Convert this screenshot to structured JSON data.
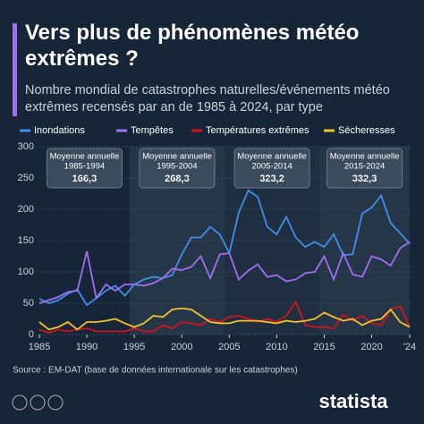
{
  "chart_data": {
    "type": "line",
    "title": "Vers plus de phénomènes météo extrêmes ?",
    "subtitle": "Nombre mondial de catastrophes naturelles/événements météo extrêmes recensés par an de 1985 à 2024, par type",
    "source": "Source : EM-DAT (base de données internationale sur les catastrophes)",
    "brand": "statista",
    "x": [
      1985,
      1986,
      1987,
      1988,
      1989,
      1990,
      1991,
      1992,
      1993,
      1994,
      1995,
      1996,
      1997,
      1998,
      1999,
      2000,
      2001,
      2002,
      2003,
      2004,
      2005,
      2006,
      2007,
      2008,
      2009,
      2010,
      2011,
      2012,
      2013,
      2014,
      2015,
      2016,
      2017,
      2018,
      2019,
      2020,
      2021,
      2022,
      2023,
      2024
    ],
    "series": [
      {
        "name": "Inondations",
        "color": "#3f8fe8",
        "values": [
          57,
          50,
          55,
          65,
          72,
          47,
          58,
          70,
          78,
          62,
          80,
          88,
          92,
          90,
          95,
          128,
          155,
          155,
          172,
          160,
          130,
          195,
          230,
          220,
          172,
          160,
          188,
          155,
          140,
          148,
          140,
          160,
          127,
          128,
          193,
          203,
          222,
          178,
          162,
          145
        ]
      },
      {
        "name": "Tempêtes",
        "color": "#9f6ff0",
        "values": [
          50,
          55,
          60,
          68,
          70,
          133,
          58,
          80,
          70,
          80,
          80,
          78,
          82,
          90,
          105,
          103,
          108,
          125,
          90,
          128,
          130,
          88,
          102,
          112,
          92,
          95,
          85,
          88,
          98,
          100,
          125,
          88,
          130,
          96,
          92,
          125,
          120,
          110,
          138,
          148
        ]
      },
      {
        "name": "Températures extrêmes",
        "color": "#d0141e",
        "values": [
          8,
          3,
          8,
          5,
          8,
          10,
          5,
          5,
          5,
          5,
          10,
          5,
          5,
          15,
          10,
          20,
          18,
          15,
          25,
          20,
          28,
          30,
          25,
          20,
          25,
          20,
          30,
          52,
          15,
          12,
          12,
          10,
          32,
          22,
          30,
          18,
          15,
          40,
          45,
          12
        ]
      },
      {
        "name": "Sécheresses",
        "color": "#f2c22e",
        "values": [
          20,
          8,
          12,
          20,
          8,
          20,
          20,
          22,
          25,
          18,
          12,
          18,
          30,
          28,
          40,
          42,
          40,
          30,
          20,
          18,
          18,
          22,
          22,
          22,
          20,
          18,
          22,
          20,
          22,
          25,
          35,
          28,
          22,
          25,
          15,
          22,
          25,
          40,
          20,
          12
        ]
      }
    ],
    "annotations": [
      {
        "label": "Moyenne annuelle",
        "period": "1985-1994",
        "value": 166.3,
        "value_label": "166,3"
      },
      {
        "label": "Moyenne annuelle",
        "period": "1995-2004",
        "value": 268.3,
        "value_label": "268,3"
      },
      {
        "label": "Moyenne annuelle",
        "period": "2005-2014",
        "value": 323.2,
        "value_label": "323,2"
      },
      {
        "label": "Moyenne annuelle",
        "period": "2015-2024",
        "value": 332.3,
        "value_label": "332,3"
      }
    ],
    "xlim": [
      1985,
      2024
    ],
    "xticks": [
      1985,
      1990,
      1995,
      2000,
      2005,
      2010,
      2015,
      2020,
      {
        "value": 2024,
        "label": "'24"
      }
    ],
    "ylim": [
      0,
      300
    ],
    "yticks": [
      0,
      50,
      100,
      150,
      200,
      250,
      300
    ],
    "grid": true
  }
}
